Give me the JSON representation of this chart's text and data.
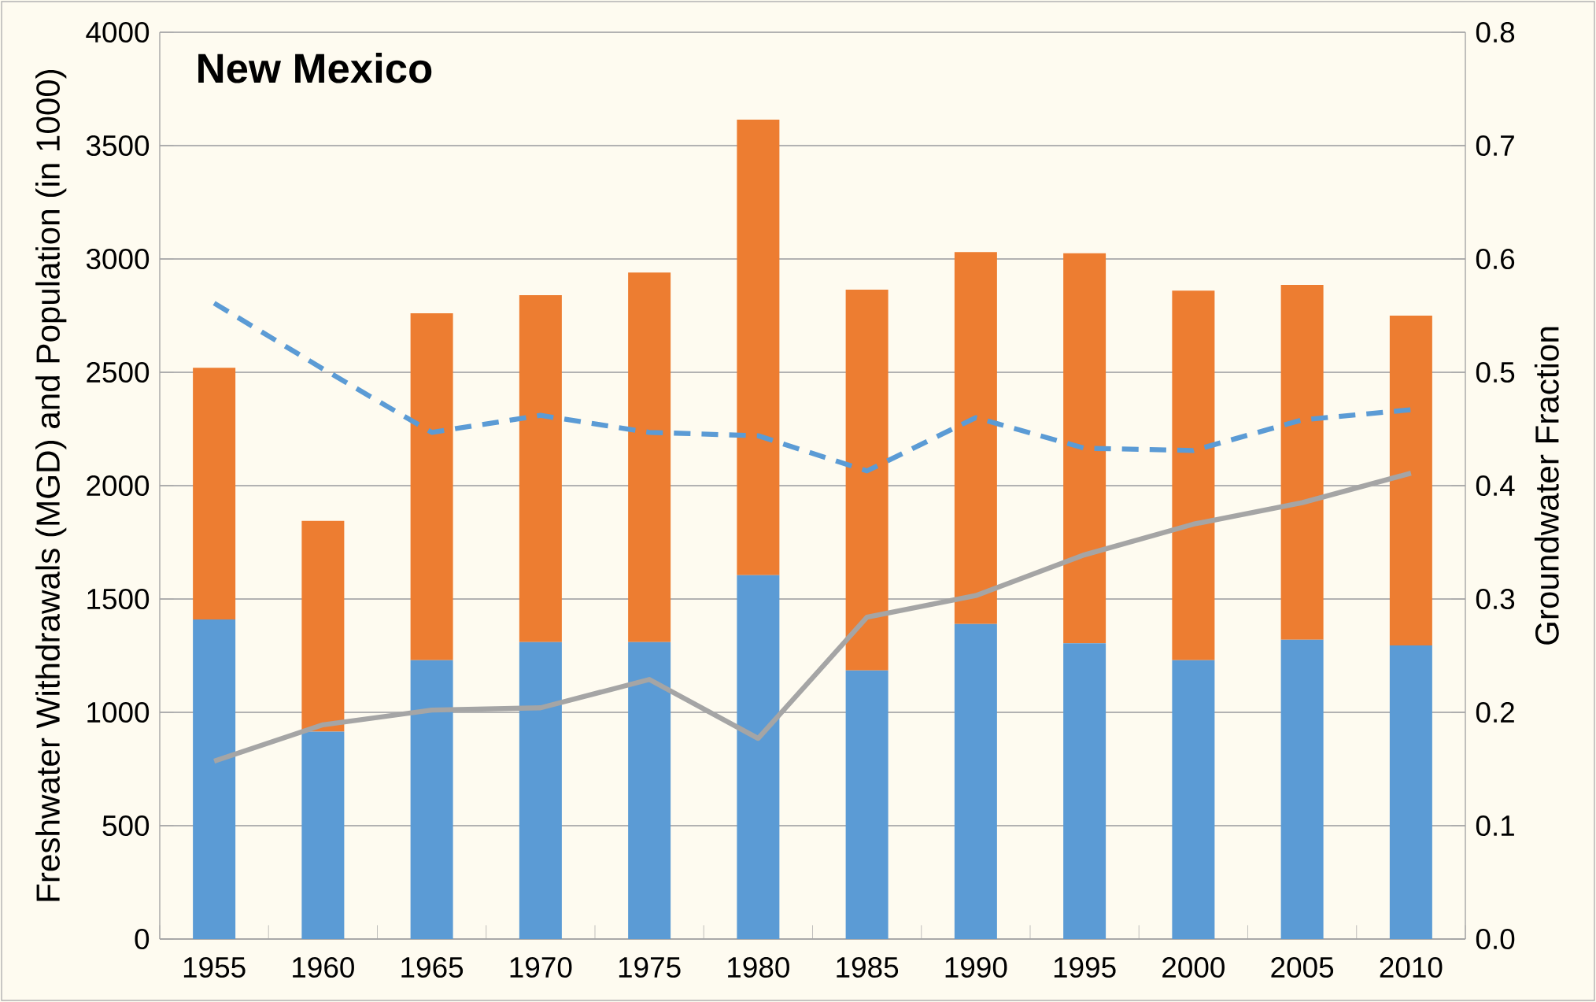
{
  "chart_data": {
    "type": "bar",
    "title": "New Mexico",
    "ylabel": "Freshwater Withdrawals (MGD) and Population (in 1000)",
    "y2label": "Groundwater Fraction",
    "categories": [
      "1955",
      "1960",
      "1965",
      "1970",
      "1975",
      "1980",
      "1985",
      "1990",
      "1995",
      "2000",
      "2005",
      "2010"
    ],
    "stacked": true,
    "grid": "y",
    "ylim": [
      0,
      4000
    ],
    "yticks": [
      0,
      500,
      1000,
      1500,
      2000,
      2500,
      3000,
      3500,
      4000
    ],
    "y2lim": [
      0,
      0.8
    ],
    "y2ticks": [
      {
        "value": 0,
        "label": "0.0"
      },
      0.1,
      0.2,
      0.3,
      0.4,
      0.5,
      0.6,
      0.7,
      0.8
    ],
    "series": [
      {
        "color": "#5b9bd5",
        "values": [
          1410,
          915,
          1230,
          1310,
          1310,
          1605,
          1185,
          1390,
          1305,
          1230,
          1320,
          1295
        ]
      },
      {
        "color": "#ed7d31",
        "values": [
          1110,
          930,
          1530,
          1530,
          1630,
          2010,
          1680,
          1640,
          1720,
          1630,
          1565,
          1455
        ]
      },
      {
        "type": "line",
        "color": "#a5a5a5",
        "values": [
          785,
          945,
          1010,
          1020,
          1145,
          885,
          1420,
          1515,
          1695,
          1830,
          1925,
          2055
        ]
      },
      {
        "type": "line",
        "axis": "y2",
        "color": "#5b9bd5",
        "line_style": "dashed",
        "values": [
          0.561,
          0.503,
          0.447,
          0.462,
          0.447,
          0.444,
          0.413,
          0.46,
          0.433,
          0.431,
          0.458,
          0.467
        ]
      }
    ]
  }
}
